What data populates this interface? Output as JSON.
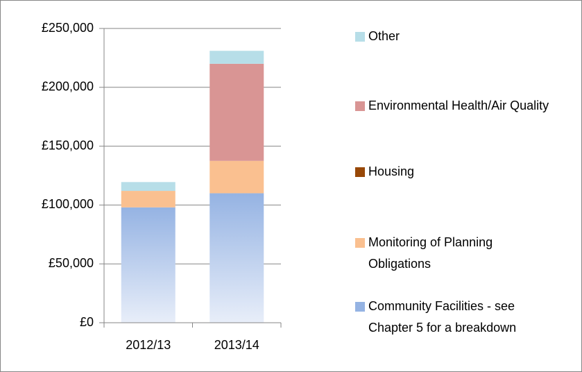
{
  "chart_data": {
    "type": "stacked_bar",
    "categories": [
      "2012/13",
      "2013/14"
    ],
    "series": [
      {
        "name": "Community Facilities - see Chapter 5 for a breakdown",
        "color": "#95b3e3",
        "values": [
          98000,
          110000
        ]
      },
      {
        "name": "Monitoring of Planning Obligations",
        "color": "#fac090",
        "values": [
          14000,
          27500
        ]
      },
      {
        "name": "Housing",
        "color": "#984807",
        "values": [
          0,
          0
        ]
      },
      {
        "name": "Environmental Health/Air Quality",
        "color": "#d99594",
        "values": [
          0,
          82500
        ]
      },
      {
        "name": "Other",
        "color": "#b7dee8",
        "values": [
          7500,
          11000
        ]
      }
    ],
    "ylim": [
      0,
      250000
    ],
    "yticks": [
      {
        "value": 0,
        "label": "£0"
      },
      {
        "value": 50000,
        "label": "£50,000"
      },
      {
        "value": 100000,
        "label": "£100,000"
      },
      {
        "value": 150000,
        "label": "£150,000"
      },
      {
        "value": 200000,
        "label": "£200,000"
      },
      {
        "value": 250000,
        "label": "£250,000"
      }
    ],
    "grid": true
  }
}
